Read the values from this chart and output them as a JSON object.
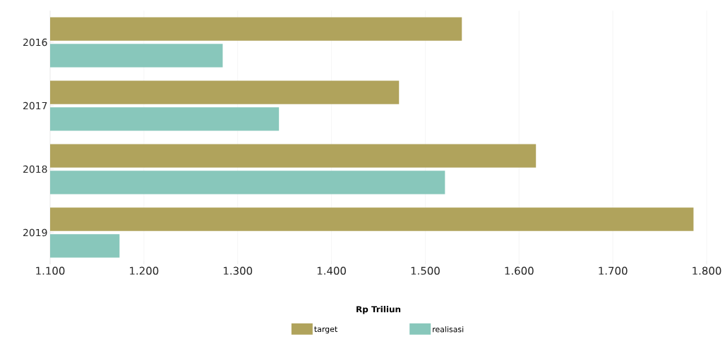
{
  "chart_data": {
    "type": "bar",
    "orientation": "horizontal",
    "xlabel": "Rp Triliun",
    "categories": [
      "2016",
      "2017",
      "2018",
      "2019"
    ],
    "series": [
      {
        "name": "target",
        "color": "#b0a35c",
        "values": [
          1539,
          1472,
          1618,
          1786
        ]
      },
      {
        "name": "realisasi",
        "color": "#88c7bb",
        "values": [
          1284,
          1344,
          1521,
          1174
        ]
      }
    ],
    "xlim": [
      1100,
      1800
    ],
    "xticks": [
      {
        "value": 1100,
        "label": "1.100"
      },
      {
        "value": 1200,
        "label": "1.200"
      },
      {
        "value": 1300,
        "label": "1.300"
      },
      {
        "value": 1400,
        "label": "1.400"
      },
      {
        "value": 1500,
        "label": "1.500"
      },
      {
        "value": 1600,
        "label": "1.600"
      },
      {
        "value": 1700,
        "label": "1.700"
      },
      {
        "value": 1800,
        "label": "1.800"
      }
    ],
    "grid": "x",
    "legend": "bottom"
  }
}
